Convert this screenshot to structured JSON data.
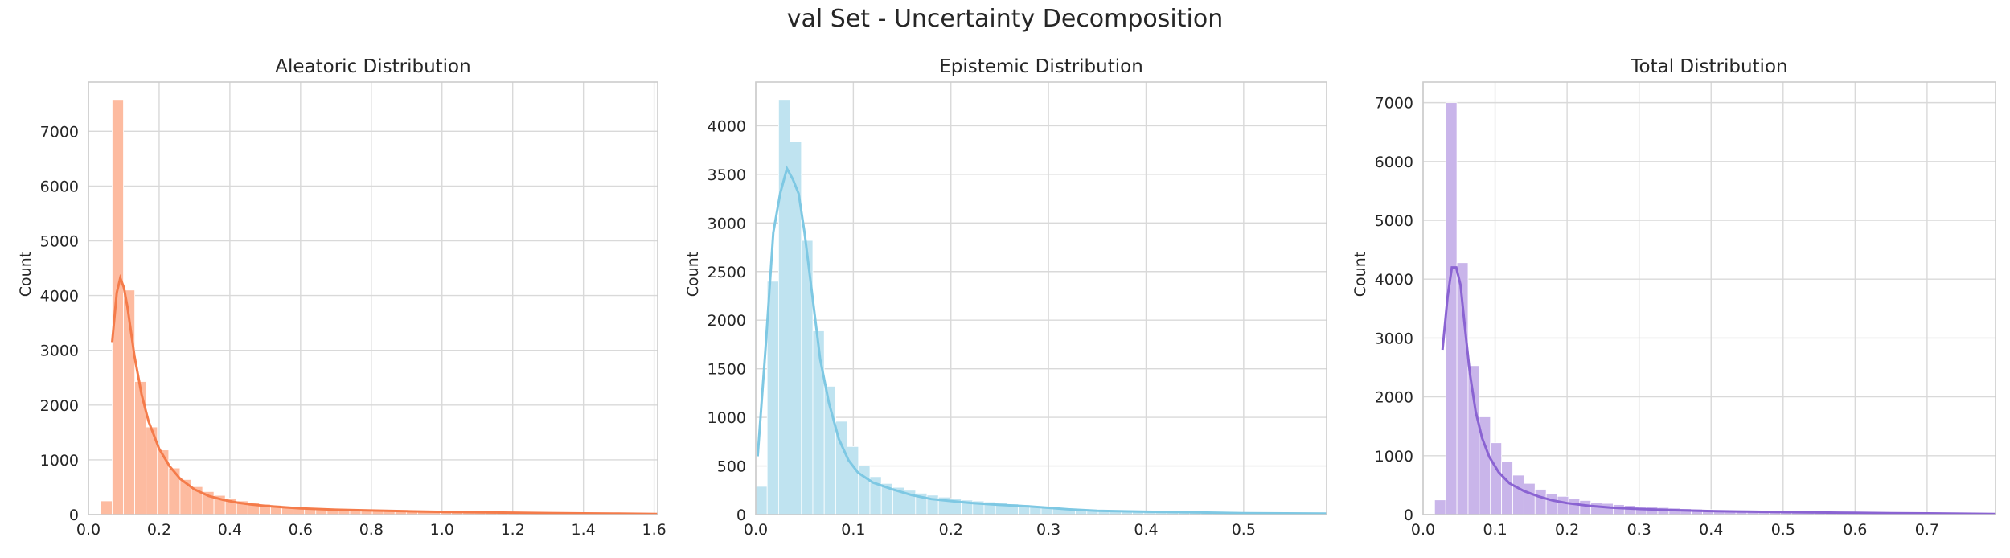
{
  "figure": {
    "title": "val Set - Uncertainty Decomposition"
  },
  "chart_data": [
    {
      "type": "bar",
      "subtype": "histogram with kde line",
      "title": "Aleatoric Distribution",
      "xlabel": "",
      "ylabel": "Count",
      "xlim": [
        0,
        1.61
      ],
      "ylim": [
        0,
        7900
      ],
      "xticks": [
        0.0,
        0.2,
        0.4,
        0.6,
        0.8,
        1.0,
        1.2,
        1.4,
        1.6
      ],
      "xtick_labels": [
        "0.0",
        "0.2",
        "0.4",
        "0.6",
        "0.8",
        "1.0",
        "1.2",
        "1.4",
        "1.6"
      ],
      "yticks": [
        0,
        1000,
        2000,
        3000,
        4000,
        5000,
        6000,
        7000
      ],
      "ytick_labels": [
        "0",
        "1000",
        "2000",
        "3000",
        "4000",
        "5000",
        "6000",
        "7000"
      ],
      "grid": true,
      "bar_color": "#fdbba0",
      "line_color": "#f47b4a",
      "bin_width": 0.032,
      "bins_start": [
        0.035,
        0.067,
        0.099,
        0.131,
        0.163,
        0.195,
        0.227,
        0.259,
        0.291,
        0.323,
        0.355,
        0.387,
        0.419,
        0.451,
        0.483,
        0.515,
        0.547,
        0.579,
        0.611,
        0.643,
        0.675,
        0.707,
        0.739,
        0.771,
        0.803,
        0.835,
        0.867,
        0.899,
        0.931,
        0.963,
        0.995,
        1.027,
        1.059,
        1.091,
        1.123,
        1.155,
        1.187,
        1.219,
        1.251,
        1.283,
        1.315,
        1.347,
        1.379,
        1.411,
        1.443,
        1.475,
        1.507,
        1.539,
        1.571
      ],
      "counts": [
        250,
        7580,
        4100,
        2430,
        1600,
        1180,
        850,
        640,
        510,
        420,
        350,
        300,
        250,
        220,
        190,
        170,
        150,
        140,
        130,
        115,
        105,
        95,
        85,
        78,
        70,
        65,
        60,
        55,
        50,
        46,
        43,
        40,
        37,
        34,
        31,
        29,
        27,
        25,
        23,
        21,
        20,
        19,
        18,
        17,
        16,
        15,
        14,
        13,
        12
      ],
      "kde_x": [
        0.067,
        0.08,
        0.09,
        0.1,
        0.11,
        0.13,
        0.15,
        0.17,
        0.2,
        0.23,
        0.26,
        0.3,
        0.34,
        0.38,
        0.42,
        0.46,
        0.5,
        0.55,
        0.6,
        0.7,
        0.8,
        0.9,
        1.0,
        1.1,
        1.2,
        1.3,
        1.4,
        1.5,
        1.61
      ],
      "kde_y": [
        3150,
        4050,
        4320,
        4150,
        3800,
        2900,
        2200,
        1700,
        1200,
        880,
        650,
        460,
        340,
        270,
        220,
        185,
        160,
        135,
        115,
        90,
        75,
        62,
        50,
        42,
        35,
        28,
        22,
        17,
        12
      ]
    },
    {
      "type": "bar",
      "subtype": "histogram with kde line",
      "title": "Epistemic Distribution",
      "xlabel": "",
      "ylabel": "Count",
      "xlim": [
        0,
        0.585
      ],
      "ylim": [
        0,
        4450
      ],
      "xticks": [
        0.0,
        0.1,
        0.2,
        0.3,
        0.4,
        0.5
      ],
      "xtick_labels": [
        "0.0",
        "0.1",
        "0.2",
        "0.3",
        "0.4",
        "0.5"
      ],
      "yticks": [
        0,
        500,
        1000,
        1500,
        2000,
        2500,
        3000,
        3500,
        4000
      ],
      "ytick_labels": [
        "0",
        "500",
        "1000",
        "1500",
        "2000",
        "2500",
        "3000",
        "3500",
        "4000"
      ],
      "grid": true,
      "bar_color": "#bfe3f0",
      "line_color": "#7ec8e3",
      "bin_width": 0.0117,
      "bins_start": [
        0.0,
        0.0117,
        0.0234,
        0.0351,
        0.0468,
        0.0585,
        0.0702,
        0.0819,
        0.0936,
        0.1053,
        0.117,
        0.1287,
        0.1404,
        0.1521,
        0.1638,
        0.1755,
        0.1872,
        0.1989,
        0.2106,
        0.2223,
        0.234,
        0.2457,
        0.2574,
        0.2691,
        0.2808,
        0.2925,
        0.3042,
        0.3159,
        0.3276,
        0.3393,
        0.351,
        0.3627,
        0.3744,
        0.3861,
        0.3978,
        0.4095,
        0.4212,
        0.4329,
        0.4446,
        0.4563,
        0.468,
        0.4797,
        0.4914,
        0.5031,
        0.5148,
        0.5265,
        0.5382,
        0.5499,
        0.5616
      ],
      "counts": [
        290,
        2400,
        4270,
        3840,
        2820,
        1890,
        1320,
        960,
        700,
        500,
        390,
        320,
        280,
        250,
        220,
        200,
        180,
        165,
        150,
        140,
        130,
        120,
        110,
        100,
        90,
        80,
        70,
        60,
        55,
        50,
        45,
        40,
        38,
        35,
        32,
        30,
        28,
        26,
        24,
        22,
        20,
        19,
        18,
        17,
        16,
        15,
        14,
        13,
        12
      ],
      "kde_x": [
        0.002,
        0.01,
        0.018,
        0.025,
        0.032,
        0.038,
        0.044,
        0.05,
        0.058,
        0.066,
        0.075,
        0.085,
        0.095,
        0.105,
        0.12,
        0.14,
        0.16,
        0.18,
        0.2,
        0.22,
        0.25,
        0.28,
        0.3,
        0.32,
        0.35,
        0.4,
        0.45,
        0.5,
        0.585
      ],
      "kde_y": [
        600,
        1700,
        2900,
        3300,
        3560,
        3450,
        3300,
        2900,
        2250,
        1600,
        1150,
        780,
        560,
        430,
        330,
        260,
        200,
        160,
        140,
        120,
        100,
        85,
        70,
        55,
        40,
        30,
        22,
        15,
        10
      ]
    },
    {
      "type": "bar",
      "subtype": "histogram with kde line",
      "title": "Total Distribution",
      "xlabel": "",
      "ylabel": "Count",
      "xlim": [
        0,
        0.795
      ],
      "ylim": [
        0,
        7350
      ],
      "xticks": [
        0.0,
        0.1,
        0.2,
        0.3,
        0.4,
        0.5,
        0.6,
        0.7
      ],
      "xtick_labels": [
        "0.0",
        "0.1",
        "0.2",
        "0.3",
        "0.4",
        "0.5",
        "0.6",
        "0.7"
      ],
      "yticks": [
        0,
        1000,
        2000,
        3000,
        4000,
        5000,
        6000,
        7000
      ],
      "ytick_labels": [
        "0",
        "1000",
        "2000",
        "3000",
        "4000",
        "5000",
        "6000",
        "7000"
      ],
      "grid": true,
      "bar_color": "#c9b5ea",
      "line_color": "#8a63d2",
      "bin_width": 0.0155,
      "bins_start": [
        0.016,
        0.0315,
        0.047,
        0.0625,
        0.078,
        0.0935,
        0.109,
        0.1245,
        0.14,
        0.1555,
        0.171,
        0.1865,
        0.202,
        0.2175,
        0.233,
        0.2485,
        0.264,
        0.2795,
        0.295,
        0.3105,
        0.326,
        0.3415,
        0.357,
        0.3725,
        0.388,
        0.4035,
        0.419,
        0.4345,
        0.45,
        0.4655,
        0.481,
        0.4965,
        0.512,
        0.5275,
        0.543,
        0.5585,
        0.574,
        0.5895,
        0.605,
        0.6205,
        0.636,
        0.6515,
        0.667,
        0.6825,
        0.698,
        0.7135,
        0.729,
        0.7445,
        0.76,
        0.7755
      ],
      "counts": [
        250,
        7000,
        4280,
        2530,
        1660,
        1220,
        900,
        670,
        530,
        430,
        360,
        310,
        270,
        240,
        210,
        190,
        170,
        155,
        140,
        130,
        120,
        110,
        100,
        92,
        85,
        78,
        72,
        66,
        60,
        55,
        50,
        46,
        42,
        38,
        35,
        32,
        30,
        28,
        26,
        24,
        22,
        20,
        19,
        18,
        17,
        16,
        15,
        14,
        13,
        12
      ],
      "kde_x": [
        0.027,
        0.034,
        0.04,
        0.046,
        0.052,
        0.058,
        0.065,
        0.073,
        0.082,
        0.092,
        0.105,
        0.12,
        0.14,
        0.16,
        0.18,
        0.2,
        0.23,
        0.26,
        0.3,
        0.35,
        0.4,
        0.45,
        0.5,
        0.55,
        0.6,
        0.65,
        0.7,
        0.75,
        0.795
      ],
      "kde_y": [
        2800,
        3700,
        4200,
        4200,
        3900,
        3200,
        2400,
        1750,
        1300,
        980,
        720,
        530,
        400,
        310,
        240,
        195,
        150,
        120,
        95,
        75,
        60,
        50,
        42,
        36,
        30,
        25,
        20,
        15,
        10
      ]
    }
  ]
}
